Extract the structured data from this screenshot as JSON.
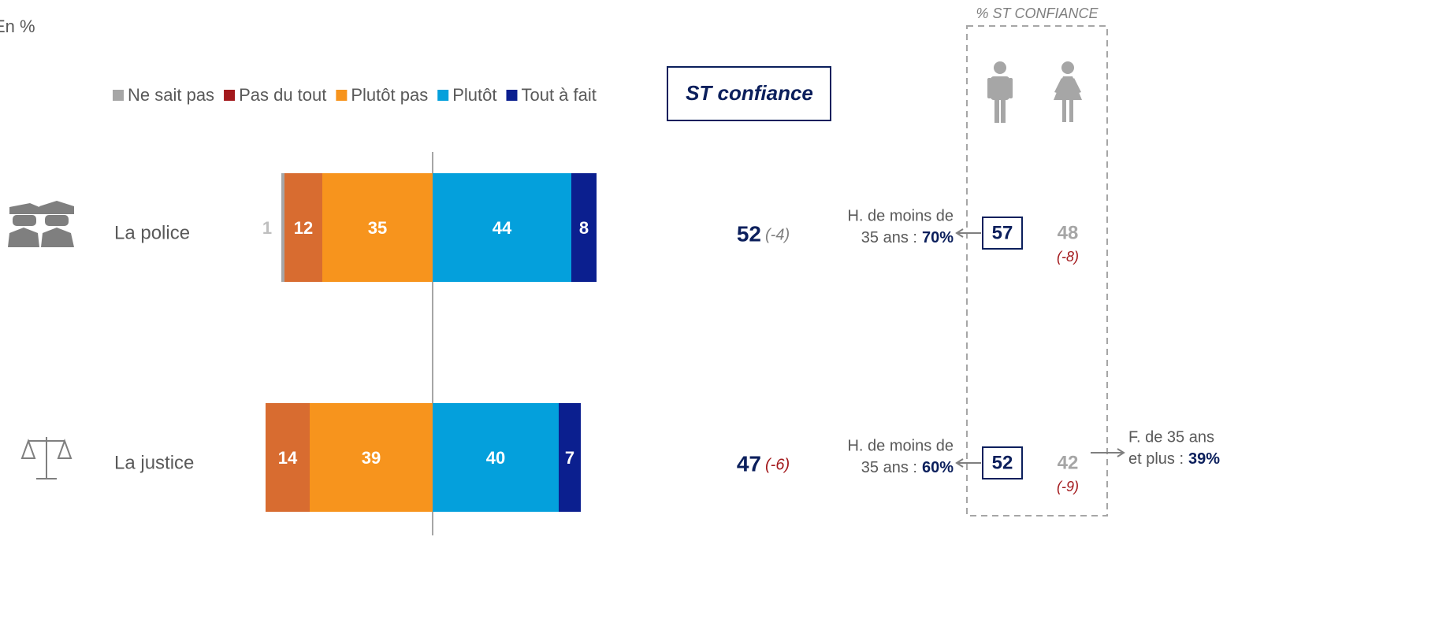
{
  "chart_data": {
    "type": "diverging_bar",
    "subtitle": "En %",
    "categories": [
      "La police",
      "La justice"
    ],
    "series": [
      {
        "name": "Ne sait pas",
        "color": "#a6a6a6",
        "legend_color": "#a6a6a6",
        "label_color": "#bfbfbf",
        "values": [
          1,
          null
        ]
      },
      {
        "name": "Pas du tout",
        "color": "#d86c30",
        "legend_color": "#a3191c",
        "label_color": "#ffffff",
        "values": [
          12,
          14
        ]
      },
      {
        "name": "Plutôt pas",
        "color": "#f7941d",
        "legend_color": "#f7941d",
        "label_color": "#ffffff",
        "values": [
          35,
          39
        ]
      },
      {
        "name": "Plutôt",
        "color": "#04a0dc",
        "legend_color": "#04a0dc",
        "label_color": "#ffffff",
        "values": [
          44,
          40
        ]
      },
      {
        "name": "Tout à fait",
        "color": "#0b1f8f",
        "legend_color": "#0b1f8f",
        "label_color": "#ffffff",
        "values": [
          8,
          7
        ]
      }
    ],
    "st_confiance": {
      "title": "ST confiance",
      "values": [
        52,
        47
      ],
      "changes": [
        -4,
        -6
      ],
      "change_labels": [
        "(-4)",
        "(-6)"
      ],
      "change_colors": [
        "#7f7f7f",
        "#a3191c"
      ]
    },
    "gender": {
      "title": "% ST CONFIANCE",
      "men": [
        57,
        52
      ],
      "women": [
        48,
        42
      ],
      "women_changes": [
        -8,
        -9
      ],
      "women_change_labels": [
        "(-8)",
        "(-9)"
      ],
      "men_notes": [
        {
          "line1": "H. de moins de",
          "line2": "35 ans :",
          "value": 70,
          "value_label": "70%"
        },
        {
          "line1": "H. de moins de",
          "line2": "35 ans :",
          "value": 60,
          "value_label": "60%"
        }
      ],
      "women_notes": [
        null,
        {
          "line1": "F. de 35 ans",
          "line2": "et plus :",
          "value": 39,
          "value_label": "39%"
        }
      ]
    }
  }
}
